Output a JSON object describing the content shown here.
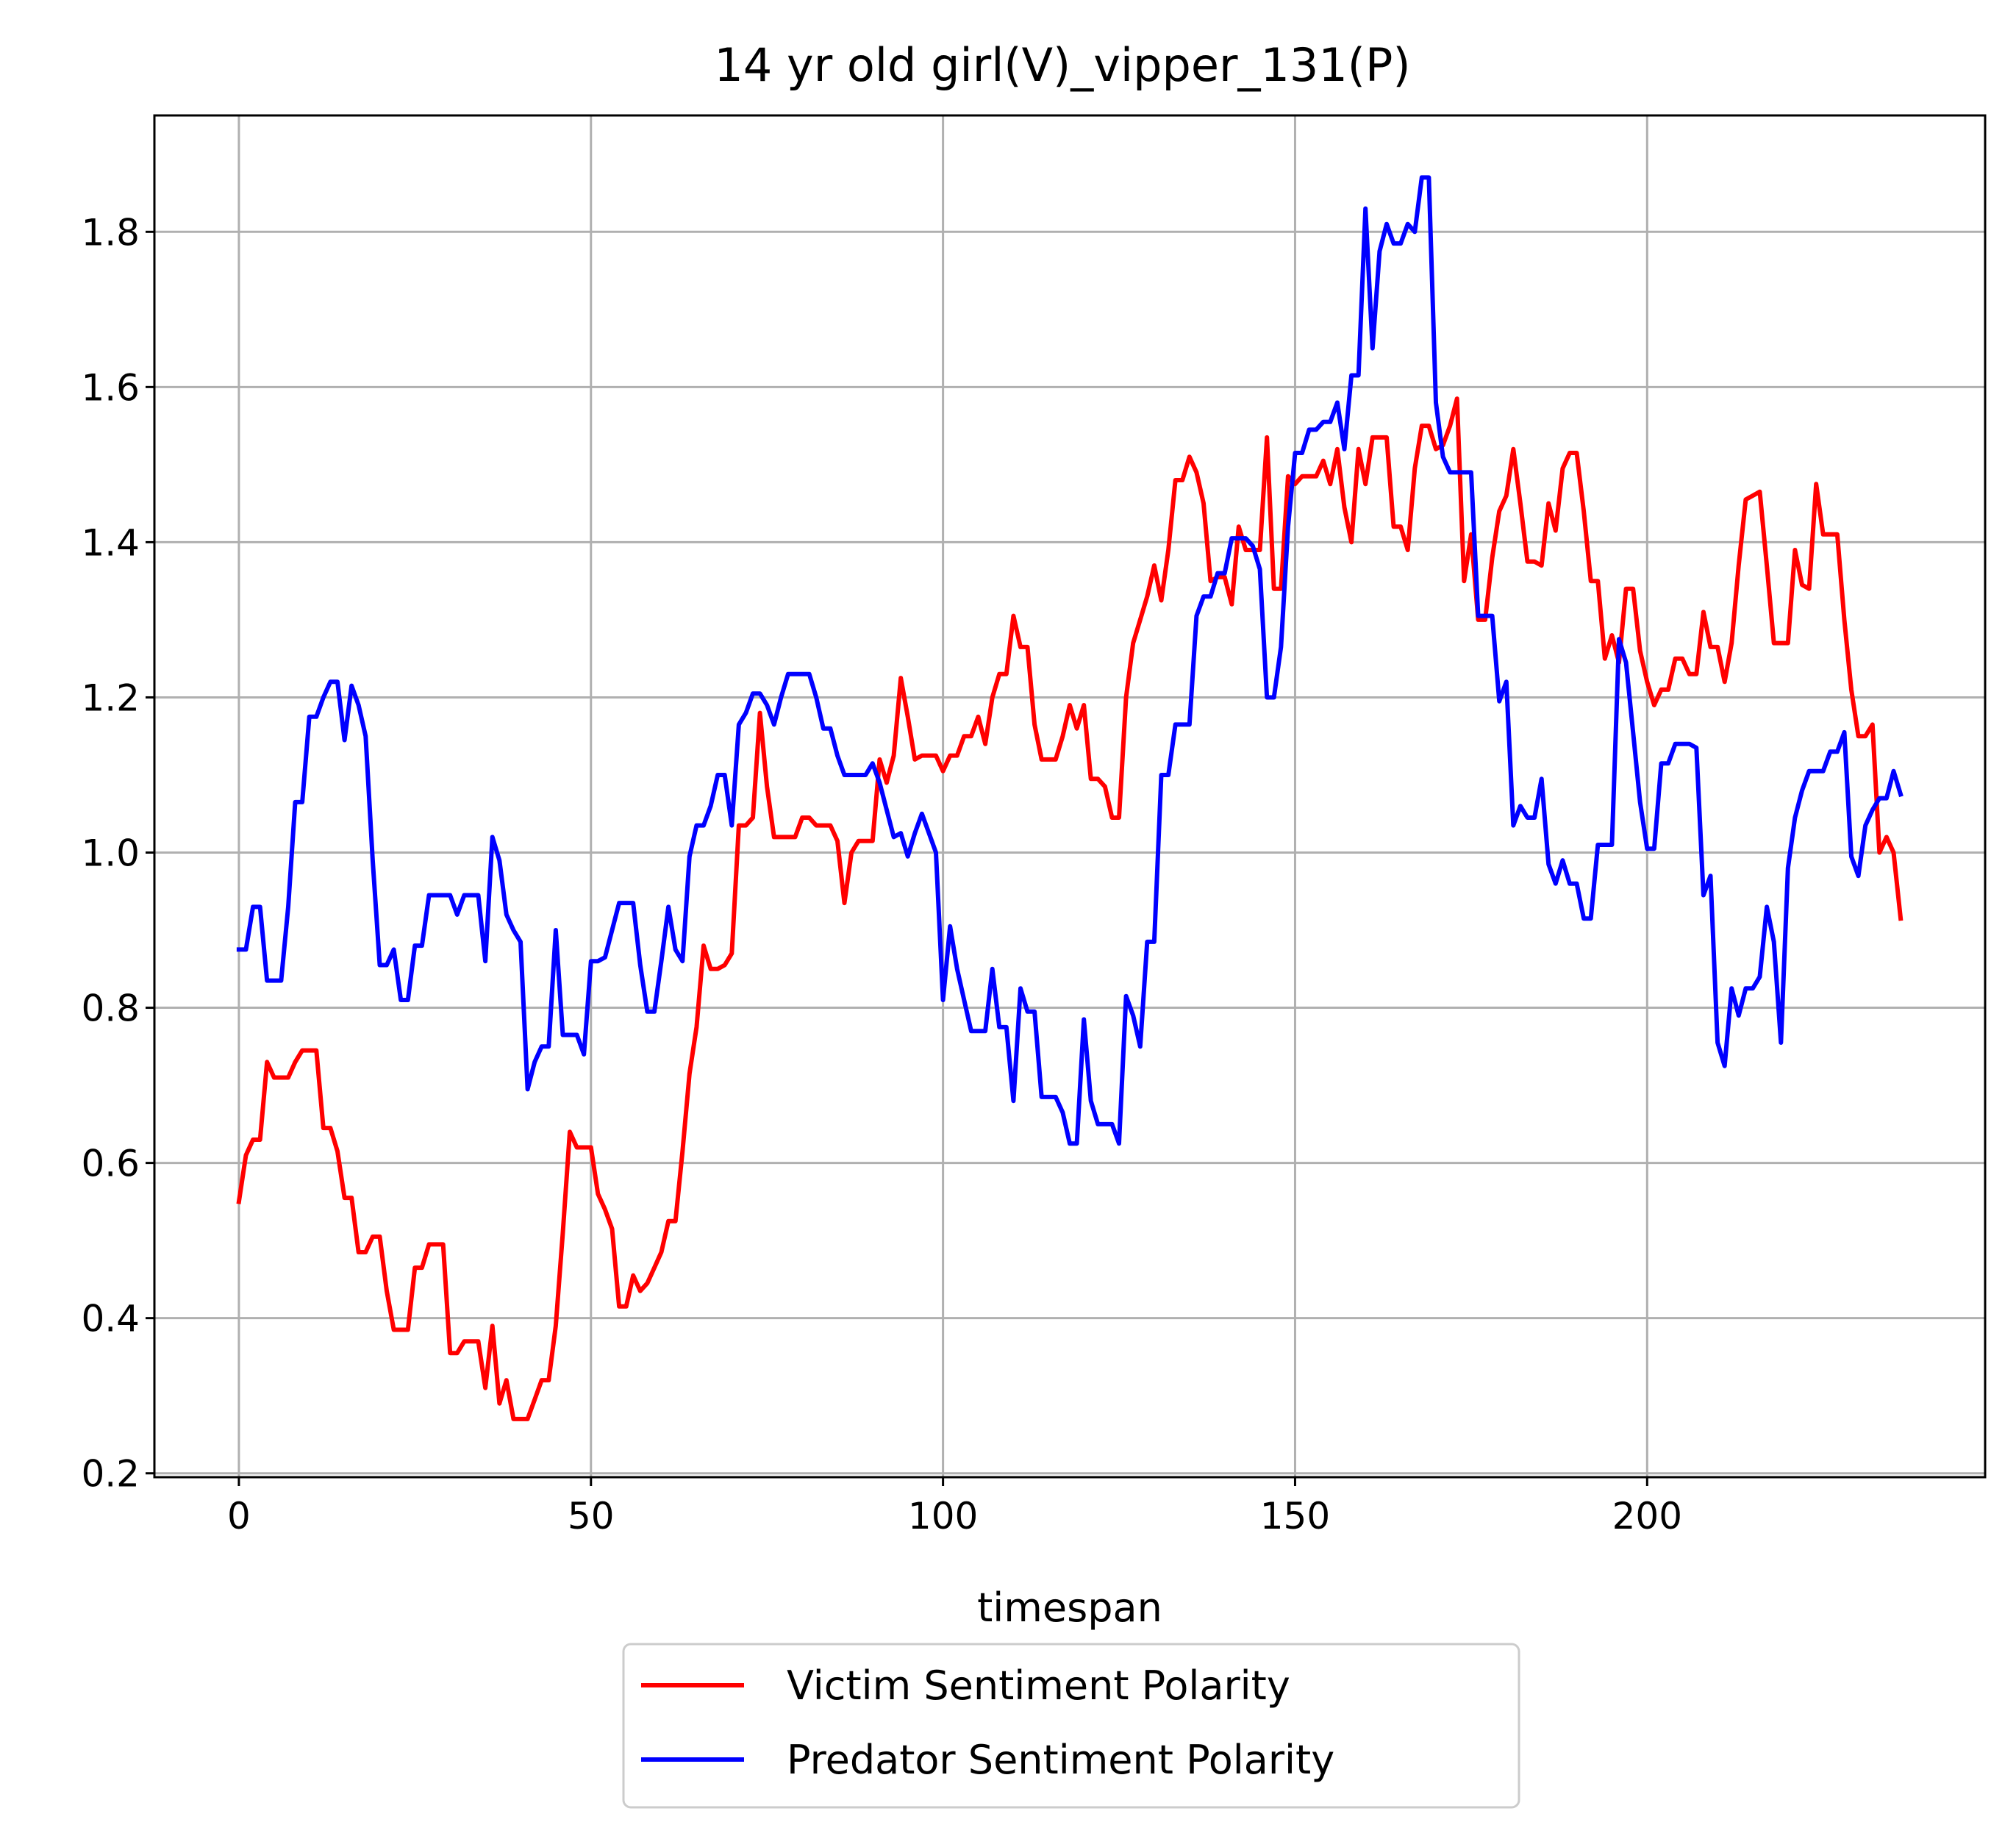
{
  "chart_data": {
    "type": "line",
    "title": "14 yr old girl(V)_vipper_131(P)",
    "xlabel": "timespan",
    "ylabel": "",
    "xlim": [
      -12,
      248
    ],
    "ylim": [
      0.195,
      1.95
    ],
    "xticks": [
      0,
      50,
      100,
      150,
      200
    ],
    "xtick_labels": [
      "0",
      "50",
      "100",
      "150",
      "200"
    ],
    "yticks": [
      0.2,
      0.4,
      0.6,
      0.8,
      1.0,
      1.2,
      1.4,
      1.6,
      1.8
    ],
    "ytick_labels": [
      "0.2",
      "0.4",
      "0.6",
      "0.8",
      "1.0",
      "1.2",
      "1.4",
      "1.6",
      "1.8"
    ],
    "grid": true,
    "legend_position": "bottom-center, below axes",
    "series": [
      {
        "name": "Victim Sentiment Polarity",
        "color": "#ff0000",
        "x": [
          0,
          1,
          2,
          3,
          4,
          5,
          6,
          7,
          8,
          9,
          10,
          11,
          12,
          13,
          14,
          15,
          16,
          17,
          18,
          19,
          20,
          21,
          22,
          23,
          24,
          25,
          26,
          27,
          28,
          29,
          30,
          31,
          32,
          33,
          34,
          35,
          36,
          37,
          38,
          39,
          40,
          41,
          42,
          43,
          44,
          45,
          46,
          47,
          48,
          49,
          50,
          51,
          52,
          53,
          54,
          55,
          56,
          57,
          58,
          59,
          60,
          61,
          62,
          63,
          64,
          65,
          66,
          67,
          68,
          69,
          70,
          71,
          72,
          73,
          74,
          75,
          76,
          77,
          78,
          79,
          80,
          81,
          82,
          83,
          84,
          85,
          86,
          87,
          88,
          89,
          90,
          91,
          92,
          93,
          94,
          95,
          96,
          97,
          98,
          99,
          100,
          101,
          102,
          103,
          104,
          105,
          106,
          107,
          108,
          109,
          110,
          111,
          112,
          113,
          114,
          115,
          116,
          117,
          118,
          119,
          120,
          121,
          122,
          123,
          124,
          125,
          126,
          127,
          128,
          129,
          130,
          131,
          132,
          133,
          134,
          135,
          136,
          137,
          138,
          139,
          140,
          141,
          142,
          143,
          144,
          145,
          146,
          147,
          148,
          149,
          150,
          151,
          152,
          153,
          154,
          155,
          156,
          157,
          158,
          159,
          160,
          161,
          162,
          163,
          164,
          165,
          166,
          167,
          168,
          169,
          170,
          171,
          172,
          173,
          174,
          175,
          176,
          177,
          178,
          179,
          180,
          181,
          182,
          183,
          184,
          185,
          186,
          187,
          188,
          189,
          190,
          191,
          192,
          193,
          194,
          195,
          196,
          197,
          198,
          199,
          200,
          201,
          202,
          203,
          204,
          205,
          206,
          207,
          208,
          209,
          210,
          211,
          212,
          213,
          214,
          215,
          216,
          217,
          218,
          219,
          220,
          221,
          222,
          223,
          224,
          225,
          226,
          227,
          228,
          229,
          230,
          231,
          232,
          233,
          234,
          235,
          236
        ],
        "values": [
          0.55,
          0.61,
          0.63,
          0.63,
          0.73,
          0.71,
          0.71,
          0.71,
          0.73,
          0.745,
          0.745,
          0.745,
          0.645,
          0.645,
          0.615,
          0.555,
          0.555,
          0.485,
          0.485,
          0.505,
          0.505,
          0.435,
          0.385,
          0.385,
          0.385,
          0.465,
          0.465,
          0.495,
          0.495,
          0.495,
          0.355,
          0.355,
          0.37,
          0.37,
          0.37,
          0.31,
          0.39,
          0.29,
          0.32,
          0.27,
          0.27,
          0.27,
          0.295,
          0.32,
          0.32,
          0.39,
          0.51,
          0.64,
          0.62,
          0.62,
          0.62,
          0.56,
          0.54,
          0.515,
          0.415,
          0.415,
          0.455,
          0.435,
          0.445,
          0.465,
          0.485,
          0.525,
          0.525,
          0.615,
          0.715,
          0.775,
          0.88,
          0.85,
          0.85,
          0.855,
          0.87,
          1.035,
          1.035,
          1.045,
          1.18,
          1.085,
          1.02,
          1.02,
          1.02,
          1.02,
          1.045,
          1.045,
          1.035,
          1.035,
          1.035,
          1.015,
          0.935,
          1.0,
          1.015,
          1.015,
          1.015,
          1.12,
          1.09,
          1.125,
          1.225,
          1.175,
          1.12,
          1.125,
          1.125,
          1.125,
          1.105,
          1.125,
          1.125,
          1.15,
          1.15,
          1.175,
          1.14,
          1.2,
          1.23,
          1.23,
          1.305,
          1.265,
          1.265,
          1.165,
          1.12,
          1.12,
          1.12,
          1.15,
          1.19,
          1.16,
          1.19,
          1.095,
          1.095,
          1.085,
          1.045,
          1.045,
          1.2,
          1.27,
          1.3,
          1.33,
          1.37,
          1.325,
          1.39,
          1.48,
          1.48,
          1.51,
          1.49,
          1.45,
          1.35,
          1.355,
          1.355,
          1.32,
          1.42,
          1.39,
          1.39,
          1.39,
          1.535,
          1.34,
          1.34,
          1.485,
          1.475,
          1.485,
          1.485,
          1.485,
          1.505,
          1.475,
          1.52,
          1.445,
          1.4,
          1.52,
          1.475,
          1.535,
          1.535,
          1.535,
          1.42,
          1.42,
          1.39,
          1.495,
          1.55,
          1.55,
          1.52,
          1.525,
          1.55,
          1.585,
          1.35,
          1.41,
          1.3,
          1.3,
          1.38,
          1.44,
          1.46,
          1.52,
          1.45,
          1.375,
          1.375,
          1.37,
          1.45,
          1.415,
          1.495,
          1.515,
          1.515,
          1.44,
          1.35,
          1.35,
          1.25,
          1.28,
          1.245,
          1.34,
          1.34,
          1.26,
          1.22,
          1.19,
          1.21,
          1.21,
          1.25,
          1.25,
          1.23,
          1.23,
          1.31,
          1.265,
          1.265,
          1.22,
          1.27,
          1.37,
          1.455,
          1.46,
          1.465,
          1.37,
          1.27,
          1.27,
          1.27,
          1.39,
          1.345,
          1.34,
          1.475,
          1.41,
          1.41,
          1.41,
          1.3,
          1.21,
          1.15,
          1.15,
          1.165,
          1.0,
          1.02,
          1.0,
          0.915
        ]
      },
      {
        "name": "Predator Sentiment Polarity",
        "color": "#0000ff",
        "x": [
          0,
          1,
          2,
          3,
          4,
          5,
          6,
          7,
          8,
          9,
          10,
          11,
          12,
          13,
          14,
          15,
          16,
          17,
          18,
          19,
          20,
          21,
          22,
          23,
          24,
          25,
          26,
          27,
          28,
          29,
          30,
          31,
          32,
          33,
          34,
          35,
          36,
          37,
          38,
          39,
          40,
          41,
          42,
          43,
          44,
          45,
          46,
          47,
          48,
          49,
          50,
          51,
          52,
          53,
          54,
          55,
          56,
          57,
          58,
          59,
          60,
          61,
          62,
          63,
          64,
          65,
          66,
          67,
          68,
          69,
          70,
          71,
          72,
          73,
          74,
          75,
          76,
          77,
          78,
          79,
          80,
          81,
          82,
          83,
          84,
          85,
          86,
          87,
          88,
          89,
          90,
          91,
          92,
          93,
          94,
          95,
          96,
          97,
          98,
          99,
          100,
          101,
          102,
          103,
          104,
          105,
          106,
          107,
          108,
          109,
          110,
          111,
          112,
          113,
          114,
          115,
          116,
          117,
          118,
          119,
          120,
          121,
          122,
          123,
          124,
          125,
          126,
          127,
          128,
          129,
          130,
          131,
          132,
          133,
          134,
          135,
          136,
          137,
          138,
          139,
          140,
          141,
          142,
          143,
          144,
          145,
          146,
          147,
          148,
          149,
          150,
          151,
          152,
          153,
          154,
          155,
          156,
          157,
          158,
          159,
          160,
          161,
          162,
          163,
          164,
          165,
          166,
          167,
          168,
          169,
          170,
          171,
          172,
          173,
          174,
          175,
          176,
          177,
          178,
          179,
          180,
          181,
          182,
          183,
          184,
          185,
          186,
          187,
          188,
          189,
          190,
          191,
          192,
          193,
          194,
          195,
          196,
          197,
          198,
          199,
          200,
          201,
          202,
          203,
          204,
          205,
          206,
          207,
          208,
          209,
          210,
          211,
          212,
          213,
          214,
          215,
          216,
          217,
          218,
          219,
          220,
          221,
          222,
          223,
          224,
          225,
          226,
          227,
          228,
          229,
          230,
          231,
          232,
          233,
          234,
          235,
          236
        ],
        "values": [
          0.875,
          0.875,
          0.93,
          0.93,
          0.835,
          0.835,
          0.835,
          0.93,
          1.065,
          1.065,
          1.175,
          1.175,
          1.2,
          1.22,
          1.22,
          1.145,
          1.215,
          1.19,
          1.15,
          0.99,
          0.855,
          0.855,
          0.875,
          0.81,
          0.81,
          0.88,
          0.88,
          0.945,
          0.945,
          0.945,
          0.945,
          0.92,
          0.945,
          0.945,
          0.945,
          0.86,
          1.02,
          0.99,
          0.92,
          0.9,
          0.885,
          0.695,
          0.73,
          0.75,
          0.75,
          0.9,
          0.765,
          0.765,
          0.765,
          0.74,
          0.86,
          0.86,
          0.865,
          0.9,
          0.935,
          0.935,
          0.935,
          0.855,
          0.795,
          0.795,
          0.86,
          0.93,
          0.875,
          0.86,
          0.995,
          1.035,
          1.035,
          1.06,
          1.1,
          1.1,
          1.035,
          1.165,
          1.18,
          1.205,
          1.205,
          1.19,
          1.165,
          1.2,
          1.23,
          1.23,
          1.23,
          1.23,
          1.2,
          1.16,
          1.16,
          1.125,
          1.1,
          1.1,
          1.1,
          1.1,
          1.115,
          1.09,
          1.055,
          1.02,
          1.025,
          0.995,
          1.025,
          1.05,
          1.025,
          1.0,
          0.81,
          0.905,
          0.85,
          0.81,
          0.77,
          0.77,
          0.77,
          0.85,
          0.775,
          0.775,
          0.68,
          0.825,
          0.795,
          0.795,
          0.685,
          0.685,
          0.685,
          0.665,
          0.625,
          0.625,
          0.785,
          0.68,
          0.65,
          0.65,
          0.65,
          0.625,
          0.815,
          0.79,
          0.75,
          0.885,
          0.885,
          1.1,
          1.1,
          1.165,
          1.165,
          1.165,
          1.305,
          1.33,
          1.33,
          1.36,
          1.36,
          1.405,
          1.405,
          1.405,
          1.395,
          1.365,
          1.2,
          1.2,
          1.265,
          1.42,
          1.515,
          1.515,
          1.545,
          1.545,
          1.555,
          1.555,
          1.58,
          1.52,
          1.615,
          1.615,
          1.83,
          1.65,
          1.775,
          1.81,
          1.785,
          1.785,
          1.81,
          1.8,
          1.87,
          1.87,
          1.58,
          1.51,
          1.49,
          1.49,
          1.49,
          1.49,
          1.305,
          1.305,
          1.305,
          1.195,
          1.22,
          1.035,
          1.06,
          1.045,
          1.045,
          1.095,
          0.985,
          0.96,
          0.99,
          0.96,
          0.96,
          0.915,
          0.915,
          1.01,
          1.01,
          1.01,
          1.275,
          1.245,
          1.155,
          1.065,
          1.005,
          1.005,
          1.115,
          1.115,
          1.14,
          1.14,
          1.14,
          1.135,
          0.945,
          0.97,
          0.755,
          0.725,
          0.825,
          0.79,
          0.825,
          0.825,
          0.84,
          0.93,
          0.885,
          0.755,
          0.98,
          1.045,
          1.08,
          1.105,
          1.105,
          1.105,
          1.13,
          1.13,
          1.155,
          0.995,
          0.97,
          1.035,
          1.055,
          1.07,
          1.07,
          1.105,
          1.075
        ]
      }
    ]
  }
}
